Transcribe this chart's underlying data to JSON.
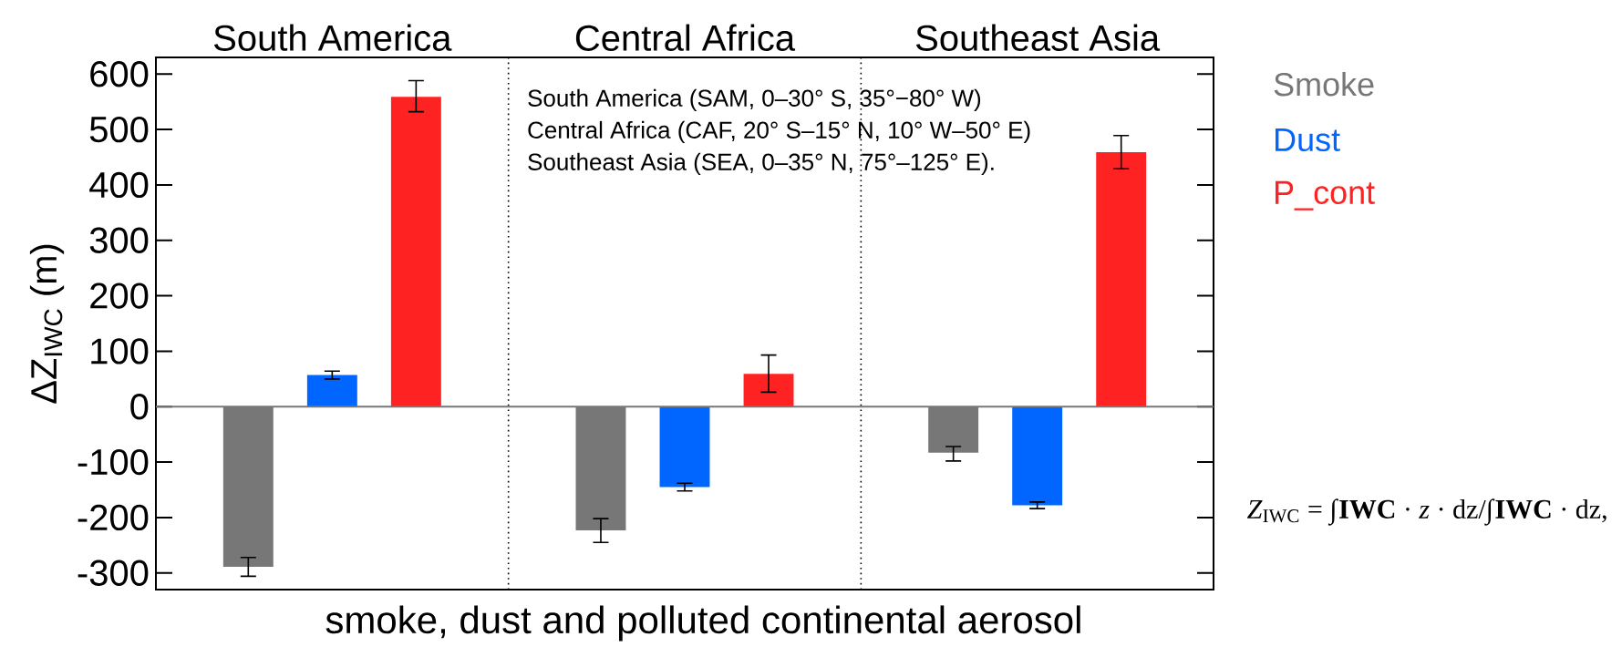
{
  "chart_data": {
    "type": "bar",
    "categories": [
      "South America",
      "Central Africa",
      "Southeast Asia"
    ],
    "ylabel": "ΔZ$_{IWC}$ (m)",
    "ylim": [
      -330,
      630
    ],
    "yticks": [
      -300,
      -200,
      -100,
      0,
      100,
      200,
      300,
      400,
      500,
      600
    ],
    "legend": "right",
    "ref_lines": [
      {
        "axis": "y",
        "value": 0,
        "color": "#777777"
      }
    ],
    "series": [
      {
        "name": "Smoke",
        "color": "#777777",
        "values": [
          -289,
          -223,
          -83
        ],
        "errors": [
          [
            -306,
            -272
          ],
          [
            -245,
            -202
          ],
          [
            -98,
            -72
          ]
        ]
      },
      {
        "name": "Dust",
        "color": "#0066ff",
        "values": [
          57,
          -145,
          -178
        ],
        "errors": [
          [
            50,
            64
          ],
          [
            -152,
            -138
          ],
          [
            -184,
            -172
          ]
        ]
      },
      {
        "name": "P_cont",
        "color": "#ff2222",
        "values": [
          559,
          59,
          459
        ],
        "errors": [
          [
            532,
            588
          ],
          [
            26,
            93
          ],
          [
            429,
            489
          ]
        ]
      }
    ],
    "annotations": [
      "South America (SAM, 0–30° S, 35°−80° W)",
      "Central Africa (CAF, 20° S–15° N, 10° W–50° E)",
      "Southeast Asia (SEA, 0–35° N, 75°–125° E).",
      "smoke, dust and polluted continental aerosol",
      "*Z*$_{IWC}$ = ∫**IWC** · *z* · dz/∫**IWC** · dz,"
    ]
  }
}
